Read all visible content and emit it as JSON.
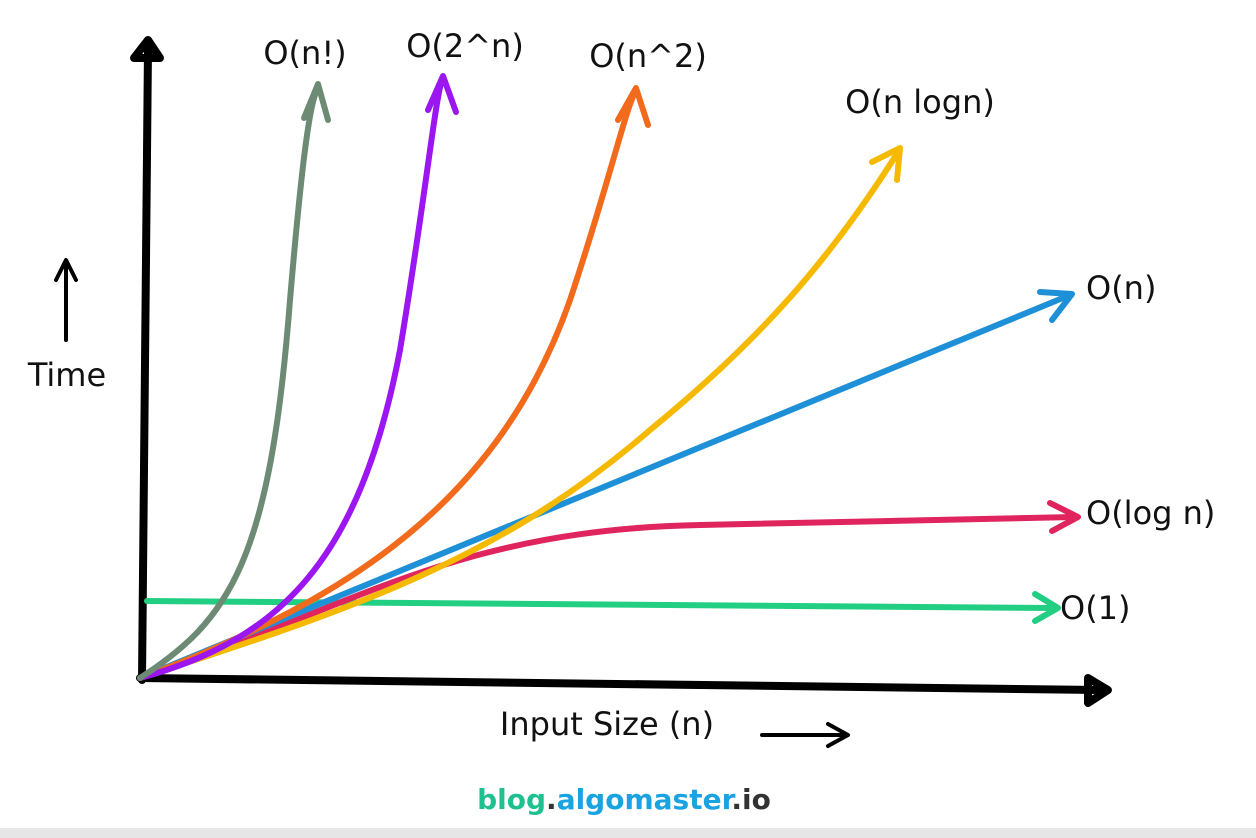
{
  "axes": {
    "y_label": "Time",
    "x_label": "Input Size (n)"
  },
  "curves": [
    {
      "label": "O(n!)"
    },
    {
      "label": "O(2^n)"
    },
    {
      "label": "O(n^2)"
    },
    {
      "label": "O(n logn)"
    },
    {
      "label": "O(n)"
    },
    {
      "label": "O(log n)"
    },
    {
      "label": "O(1)"
    }
  ],
  "footer": {
    "parts": [
      "blog",
      ".",
      "algomaster",
      ".io"
    ]
  }
}
